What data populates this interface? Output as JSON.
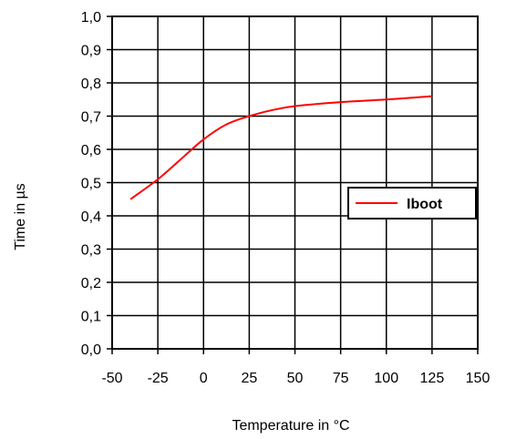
{
  "chart_data": {
    "type": "line",
    "title": "",
    "xlabel": "Temperature in °C",
    "ylabel": "Time in µs",
    "xlim": [
      -50,
      150
    ],
    "ylim": [
      0,
      1
    ],
    "x_ticks": [
      "-50",
      "-25",
      "0",
      "25",
      "50",
      "75",
      "100",
      "125",
      "150"
    ],
    "y_ticks": [
      "0,0",
      "0,1",
      "0,2",
      "0,3",
      "0,4",
      "0,5",
      "0,6",
      "0,7",
      "0,8",
      "0,9",
      "1,0"
    ],
    "grid": true,
    "legend_position": "right",
    "series": [
      {
        "name": "Iboot",
        "color": "#ff0000",
        "x": [
          -40,
          -25,
          -12.5,
          0,
          12.5,
          25,
          37.5,
          50,
          75,
          100,
          125
        ],
        "y": [
          0.45,
          0.51,
          0.57,
          0.63,
          0.675,
          0.7,
          0.718,
          0.73,
          0.742,
          0.75,
          0.76
        ]
      }
    ]
  }
}
